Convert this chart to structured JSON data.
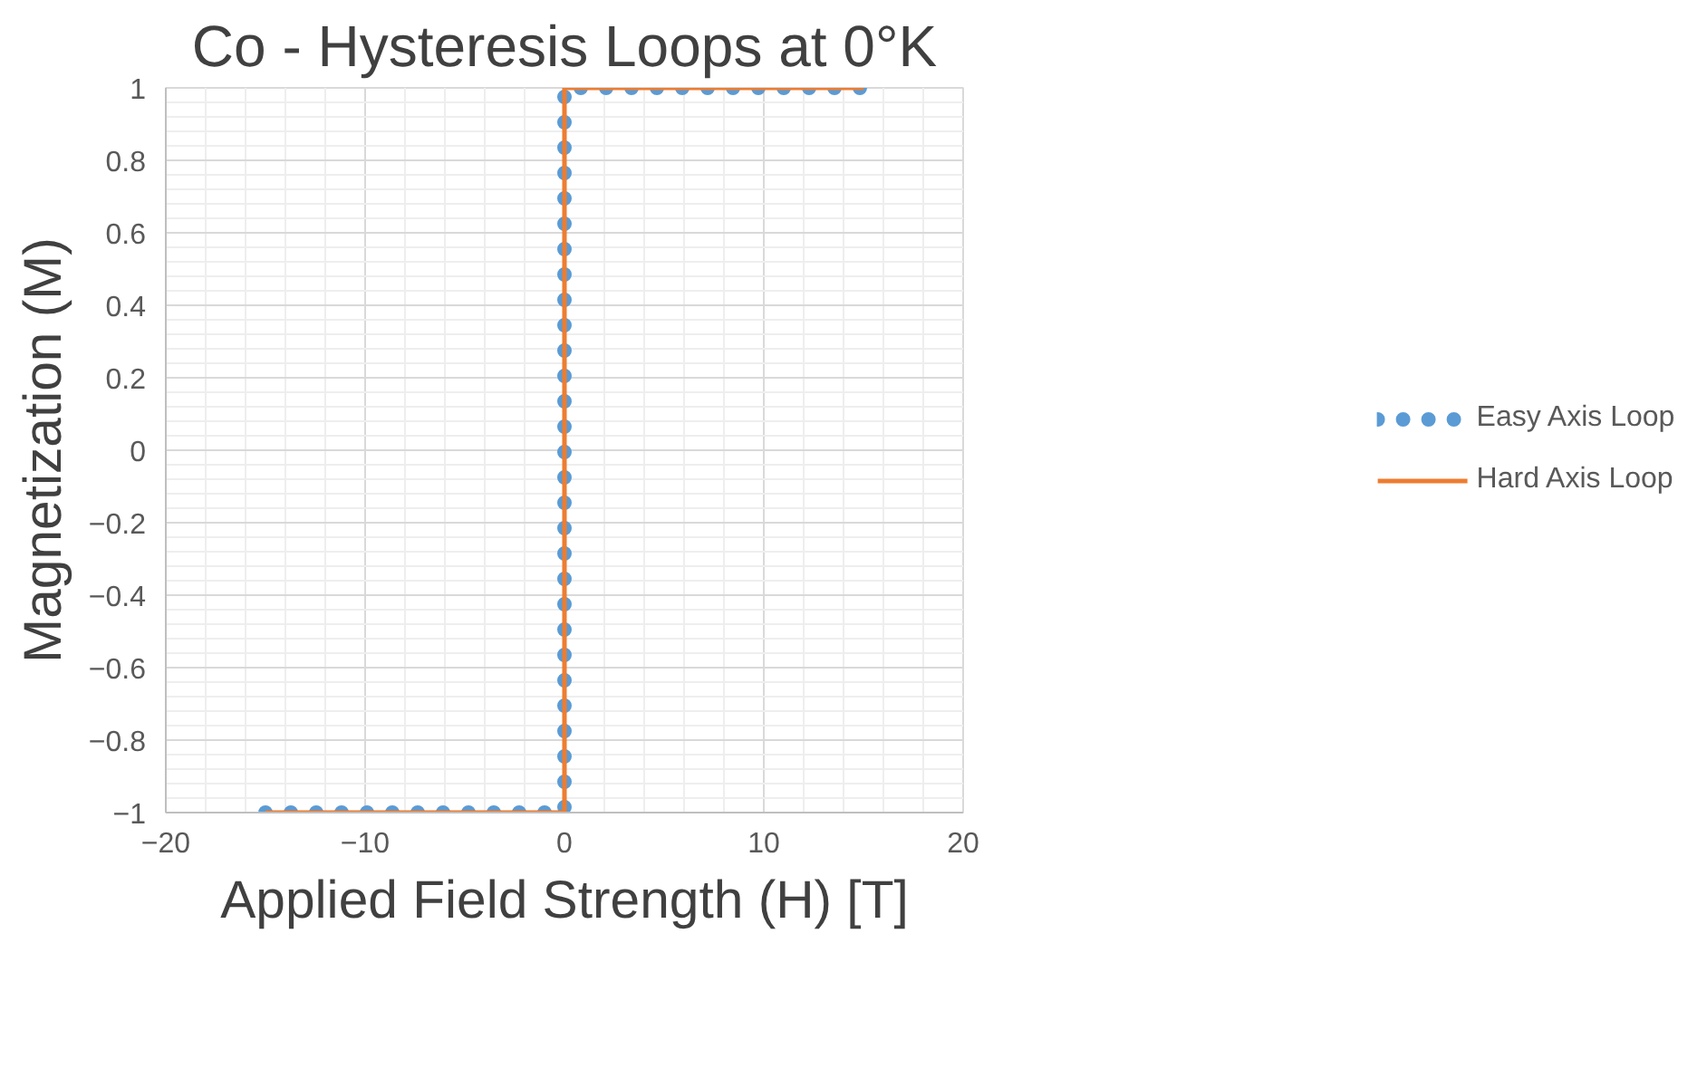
{
  "chart_data": {
    "type": "line",
    "title": "Co - Hysteresis Loops at 0°K",
    "xlabel": "Applied Field Strength (H) [T]",
    "ylabel": "Magnetization (M)",
    "xlim": [
      -20,
      20
    ],
    "xticks": [
      -20,
      -10,
      0,
      10,
      20
    ],
    "ylim": [
      -1,
      1
    ],
    "yticks": [
      -1,
      -0.8,
      -0.6,
      -0.4,
      -0.2,
      0,
      0.2,
      0.4,
      0.6,
      0.8,
      1
    ],
    "grid": true,
    "legend": "right",
    "series": [
      {
        "name": "Easy Axis Loop",
        "color": "#5b9bd5",
        "line_style": "dotted",
        "x": [
          -15,
          0,
          0,
          15
        ],
        "values": [
          -1,
          -1,
          1,
          1
        ]
      },
      {
        "name": "Hard Axis Loop",
        "color": "#ed7d31",
        "line_style": "solid",
        "x": [
          -15,
          0,
          0,
          15
        ],
        "values": [
          -1,
          -1,
          1,
          1
        ]
      }
    ]
  }
}
